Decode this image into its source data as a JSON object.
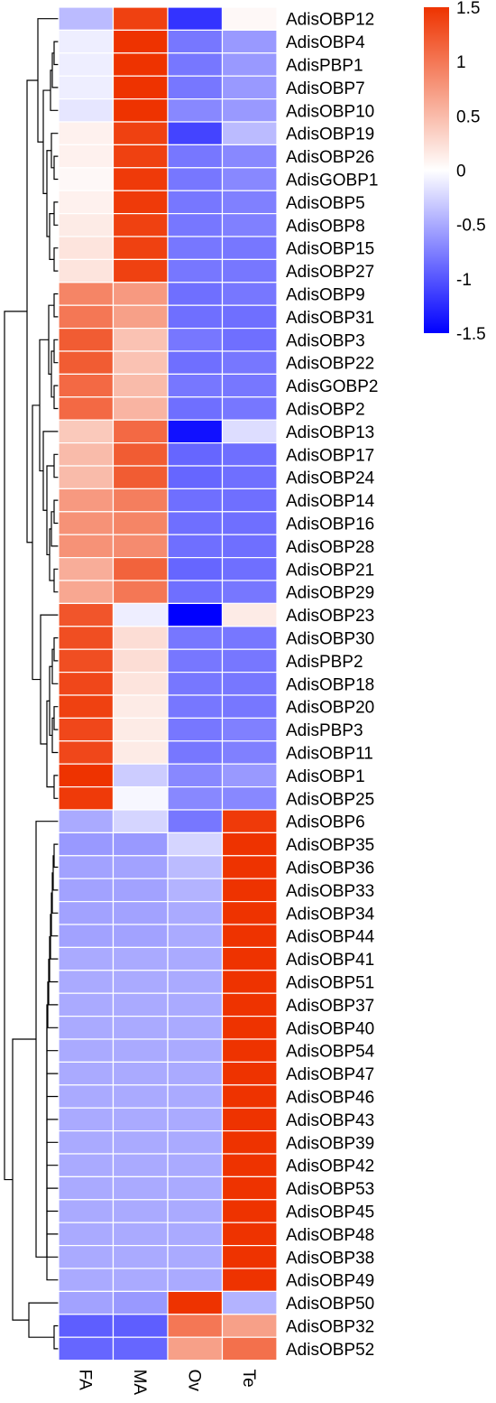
{
  "chart_data": {
    "type": "heatmap",
    "title": "",
    "columns": [
      "FA",
      "MA",
      "Ov",
      "Te"
    ],
    "rows": [
      "AdisOBP12",
      "AdisOBP4",
      "AdisPBP1",
      "AdisOBP7",
      "AdisOBP10",
      "AdisOBP19",
      "AdisOBP26",
      "AdisGOBP1",
      "AdisOBP5",
      "AdisOBP8",
      "AdisOBP15",
      "AdisOBP27",
      "AdisOBP9",
      "AdisOBP31",
      "AdisOBP3",
      "AdisOBP22",
      "AdisGOBP2",
      "AdisOBP2",
      "AdisOBP13",
      "AdisOBP17",
      "AdisOBP24",
      "AdisOBP14",
      "AdisOBP16",
      "AdisOBP28",
      "AdisOBP21",
      "AdisOBP29",
      "AdisOBP23",
      "AdisOBP30",
      "AdisPBP2",
      "AdisOBP18",
      "AdisOBP20",
      "AdisPBP3",
      "AdisOBP11",
      "AdisOBP1",
      "AdisOBP25",
      "AdisOBP6",
      "AdisOBP35",
      "AdisOBP36",
      "AdisOBP33",
      "AdisOBP34",
      "AdisOBP44",
      "AdisOBP41",
      "AdisOBP51",
      "AdisOBP37",
      "AdisOBP40",
      "AdisOBP54",
      "AdisOBP47",
      "AdisOBP46",
      "AdisOBP43",
      "AdisOBP39",
      "AdisOBP42",
      "AdisOBP53",
      "AdisOBP45",
      "AdisOBP48",
      "AdisOBP38",
      "AdisOBP49",
      "AdisOBP50",
      "AdisOBP32",
      "AdisOBP52"
    ],
    "values": [
      [
        -0.4,
        1.4,
        -1.2,
        0.05
      ],
      [
        -0.1,
        1.5,
        -0.8,
        -0.6
      ],
      [
        -0.1,
        1.5,
        -0.8,
        -0.6
      ],
      [
        -0.1,
        1.5,
        -0.8,
        -0.6
      ],
      [
        -0.15,
        1.5,
        -0.7,
        -0.6
      ],
      [
        0.1,
        1.4,
        -1.1,
        -0.4
      ],
      [
        0.1,
        1.4,
        -0.8,
        -0.7
      ],
      [
        0.05,
        1.45,
        -0.8,
        -0.7
      ],
      [
        0.1,
        1.45,
        -0.8,
        -0.75
      ],
      [
        0.15,
        1.4,
        -0.8,
        -0.75
      ],
      [
        0.2,
        1.4,
        -0.8,
        -0.8
      ],
      [
        0.2,
        1.4,
        -0.8,
        -0.8
      ],
      [
        0.9,
        0.75,
        -0.85,
        -0.8
      ],
      [
        1.0,
        0.7,
        -0.85,
        -0.85
      ],
      [
        1.2,
        0.45,
        -0.8,
        -0.85
      ],
      [
        1.2,
        0.45,
        -0.85,
        -0.8
      ],
      [
        1.1,
        0.5,
        -0.8,
        -0.8
      ],
      [
        1.1,
        0.55,
        -0.85,
        -0.8
      ],
      [
        0.4,
        1.1,
        -1.4,
        -0.2
      ],
      [
        0.5,
        1.2,
        -0.9,
        -0.85
      ],
      [
        0.5,
        1.2,
        -0.9,
        -0.85
      ],
      [
        0.75,
        0.95,
        -0.85,
        -0.85
      ],
      [
        0.8,
        0.9,
        -0.85,
        -0.85
      ],
      [
        0.8,
        0.85,
        -0.85,
        -0.85
      ],
      [
        0.6,
        1.15,
        -0.9,
        -0.85
      ],
      [
        0.65,
        1.0,
        -0.85,
        -0.8
      ],
      [
        1.25,
        -0.1,
        -1.5,
        0.15
      ],
      [
        1.3,
        0.25,
        -0.8,
        -0.8
      ],
      [
        1.3,
        0.25,
        -0.8,
        -0.8
      ],
      [
        1.35,
        0.2,
        -0.8,
        -0.8
      ],
      [
        1.4,
        0.15,
        -0.8,
        -0.8
      ],
      [
        1.35,
        0.15,
        -0.8,
        -0.75
      ],
      [
        1.35,
        0.15,
        -0.8,
        -0.75
      ],
      [
        1.5,
        -0.3,
        -0.7,
        -0.6
      ],
      [
        1.45,
        -0.05,
        -0.7,
        -0.7
      ],
      [
        -0.5,
        -0.25,
        -0.8,
        1.45
      ],
      [
        -0.6,
        -0.6,
        -0.25,
        1.5
      ],
      [
        -0.55,
        -0.55,
        -0.4,
        1.5
      ],
      [
        -0.55,
        -0.55,
        -0.45,
        1.5
      ],
      [
        -0.55,
        -0.55,
        -0.5,
        1.5
      ],
      [
        -0.55,
        -0.55,
        -0.5,
        1.5
      ],
      [
        -0.5,
        -0.5,
        -0.5,
        1.5
      ],
      [
        -0.5,
        -0.5,
        -0.5,
        1.5
      ],
      [
        -0.5,
        -0.5,
        -0.5,
        1.5
      ],
      [
        -0.5,
        -0.5,
        -0.5,
        1.5
      ],
      [
        -0.5,
        -0.5,
        -0.5,
        1.5
      ],
      [
        -0.5,
        -0.5,
        -0.5,
        1.5
      ],
      [
        -0.5,
        -0.5,
        -0.5,
        1.5
      ],
      [
        -0.5,
        -0.5,
        -0.5,
        1.5
      ],
      [
        -0.5,
        -0.5,
        -0.5,
        1.5
      ],
      [
        -0.5,
        -0.5,
        -0.5,
        1.5
      ],
      [
        -0.5,
        -0.5,
        -0.5,
        1.5
      ],
      [
        -0.5,
        -0.5,
        -0.5,
        1.5
      ],
      [
        -0.5,
        -0.5,
        -0.5,
        1.5
      ],
      [
        -0.5,
        -0.5,
        -0.5,
        1.5
      ],
      [
        -0.5,
        -0.5,
        -0.5,
        1.5
      ],
      [
        -0.55,
        -0.6,
        1.5,
        -0.45
      ],
      [
        -0.95,
        -0.95,
        1.0,
        0.7
      ],
      [
        -0.9,
        -0.9,
        0.7,
        1.05
      ]
    ],
    "color_scale": {
      "min": -1.5,
      "mid": 0,
      "max": 1.5,
      "low_color": "#0000ff",
      "mid_color": "#ffffff",
      "high_color": "#ee3300",
      "ticks": [
        "1.5",
        "1",
        "0.5",
        "0",
        "-0.5",
        "-1",
        "-1.5"
      ]
    },
    "legend_position": "top-right",
    "row_dendrogram": "left",
    "grid": true
  }
}
